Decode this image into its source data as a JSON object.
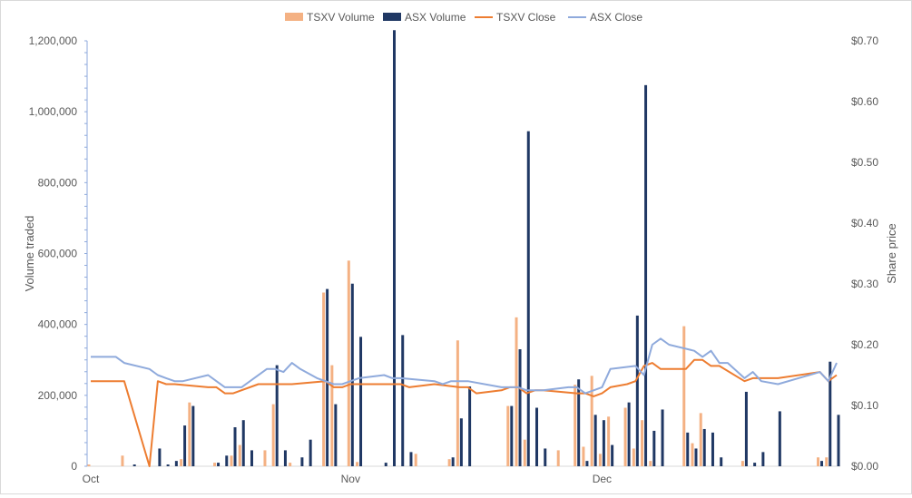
{
  "chart_data": {
    "type": "bar",
    "title": "",
    "ylabel": "Volume traded",
    "y2label": "Share price",
    "ylim": [
      0,
      1200000
    ],
    "y2lim": [
      0,
      0.7
    ],
    "yticks": [
      "0",
      "200,000",
      "400,000",
      "600,000",
      "800,000",
      "1,000,000",
      "1,200,000"
    ],
    "y2ticks": [
      "$0.00",
      "$0.10",
      "$0.20",
      "$0.30",
      "$0.40",
      "$0.50",
      "$0.60",
      "$0.70"
    ],
    "xticks": [
      {
        "label": "Oct",
        "day": 0
      },
      {
        "label": "Nov",
        "day": 31
      },
      {
        "label": "Dec",
        "day": 61
      }
    ],
    "x_range_days": [
      0,
      89
    ],
    "legend_position": "top",
    "colors": {
      "tsxv_volume": "#f4b183",
      "asx_volume": "#203864",
      "tsxv_close": "#ed7d31",
      "asx_close": "#8faadc"
    },
    "legend": [
      "TSXV Volume",
      "ASX Volume",
      "TSXV Close",
      "ASX Close"
    ],
    "series": [
      {
        "name": "TSXV Volume",
        "kind": "bar",
        "axis": "left",
        "points": [
          [
            0,
            5000
          ],
          [
            4,
            30000
          ],
          [
            11,
            20000
          ],
          [
            12,
            180000
          ],
          [
            15,
            10000
          ],
          [
            17,
            30000
          ],
          [
            18,
            60000
          ],
          [
            21,
            45000
          ],
          [
            22,
            175000
          ],
          [
            24,
            10000
          ],
          [
            28,
            490000
          ],
          [
            29,
            285000
          ],
          [
            31,
            580000
          ],
          [
            32,
            12000
          ],
          [
            39,
            35000
          ],
          [
            43,
            20000
          ],
          [
            44,
            355000
          ],
          [
            50,
            170000
          ],
          [
            51,
            420000
          ],
          [
            52,
            75000
          ],
          [
            56,
            45000
          ],
          [
            58,
            230000
          ],
          [
            59,
            55000
          ],
          [
            60,
            255000
          ],
          [
            61,
            35000
          ],
          [
            62,
            140000
          ],
          [
            64,
            165000
          ],
          [
            65,
            50000
          ],
          [
            66,
            130000
          ],
          [
            67,
            15000
          ],
          [
            71,
            395000
          ],
          [
            72,
            65000
          ],
          [
            73,
            150000
          ],
          [
            78,
            15000
          ],
          [
            87,
            25000
          ],
          [
            88,
            25000
          ]
        ]
      },
      {
        "name": "ASX Volume",
        "kind": "bar",
        "axis": "left",
        "points": [
          [
            5,
            5000
          ],
          [
            8,
            50000
          ],
          [
            9,
            5000
          ],
          [
            10,
            15000
          ],
          [
            11,
            115000
          ],
          [
            12,
            170000
          ],
          [
            15,
            10000
          ],
          [
            16,
            30000
          ],
          [
            17,
            110000
          ],
          [
            18,
            130000
          ],
          [
            19,
            45000
          ],
          [
            22,
            285000
          ],
          [
            23,
            45000
          ],
          [
            25,
            25000
          ],
          [
            26,
            75000
          ],
          [
            28,
            500000
          ],
          [
            29,
            175000
          ],
          [
            31,
            515000
          ],
          [
            32,
            365000
          ],
          [
            35,
            10000
          ],
          [
            36,
            1230000
          ],
          [
            37,
            370000
          ],
          [
            38,
            40000
          ],
          [
            43,
            25000
          ],
          [
            44,
            135000
          ],
          [
            45,
            225000
          ],
          [
            50,
            170000
          ],
          [
            51,
            330000
          ],
          [
            52,
            945000
          ],
          [
            53,
            165000
          ],
          [
            54,
            50000
          ],
          [
            58,
            245000
          ],
          [
            59,
            15000
          ],
          [
            60,
            145000
          ],
          [
            61,
            130000
          ],
          [
            62,
            60000
          ],
          [
            64,
            180000
          ],
          [
            65,
            425000
          ],
          [
            66,
            1075000
          ],
          [
            67,
            100000
          ],
          [
            68,
            160000
          ],
          [
            71,
            95000
          ],
          [
            72,
            50000
          ],
          [
            73,
            105000
          ],
          [
            74,
            95000
          ],
          [
            75,
            25000
          ],
          [
            78,
            210000
          ],
          [
            79,
            10000
          ],
          [
            80,
            40000
          ],
          [
            82,
            155000
          ],
          [
            87,
            15000
          ],
          [
            88,
            295000
          ],
          [
            89,
            145000
          ]
        ]
      },
      {
        "name": "TSXV Close",
        "kind": "line",
        "axis": "right",
        "points": [
          [
            0,
            0.14
          ],
          [
            4,
            0.14
          ],
          [
            7,
            0.0
          ],
          [
            8,
            0.14
          ],
          [
            9,
            0.135
          ],
          [
            10,
            0.135
          ],
          [
            14,
            0.13
          ],
          [
            15,
            0.13
          ],
          [
            16,
            0.12
          ],
          [
            17,
            0.12
          ],
          [
            20,
            0.135
          ],
          [
            24,
            0.135
          ],
          [
            28,
            0.14
          ],
          [
            29,
            0.13
          ],
          [
            30,
            0.13
          ],
          [
            31,
            0.135
          ],
          [
            37,
            0.135
          ],
          [
            38,
            0.13
          ],
          [
            41,
            0.135
          ],
          [
            44,
            0.13
          ],
          [
            45,
            0.13
          ],
          [
            46,
            0.12
          ],
          [
            49,
            0.125
          ],
          [
            50,
            0.13
          ],
          [
            51,
            0.13
          ],
          [
            52,
            0.12
          ],
          [
            53,
            0.125
          ],
          [
            54,
            0.125
          ],
          [
            58,
            0.12
          ],
          [
            59,
            0.12
          ],
          [
            60,
            0.115
          ],
          [
            61,
            0.12
          ],
          [
            62,
            0.13
          ],
          [
            64,
            0.135
          ],
          [
            65,
            0.14
          ],
          [
            66,
            0.165
          ],
          [
            67,
            0.17
          ],
          [
            68,
            0.16
          ],
          [
            71,
            0.16
          ],
          [
            72,
            0.175
          ],
          [
            73,
            0.175
          ],
          [
            74,
            0.165
          ],
          [
            75,
            0.165
          ],
          [
            78,
            0.14
          ],
          [
            79,
            0.145
          ],
          [
            80,
            0.145
          ],
          [
            82,
            0.145
          ],
          [
            87,
            0.155
          ],
          [
            88,
            0.14
          ],
          [
            89,
            0.15
          ]
        ]
      },
      {
        "name": "ASX Close",
        "kind": "line",
        "axis": "right",
        "points": [
          [
            0,
            0.18
          ],
          [
            3,
            0.18
          ],
          [
            4,
            0.17
          ],
          [
            7,
            0.16
          ],
          [
            8,
            0.15
          ],
          [
            9,
            0.145
          ],
          [
            10,
            0.14
          ],
          [
            11,
            0.14
          ],
          [
            14,
            0.15
          ],
          [
            15,
            0.14
          ],
          [
            16,
            0.13
          ],
          [
            17,
            0.13
          ],
          [
            18,
            0.13
          ],
          [
            21,
            0.16
          ],
          [
            22,
            0.16
          ],
          [
            23,
            0.155
          ],
          [
            24,
            0.17
          ],
          [
            25,
            0.16
          ],
          [
            27,
            0.145
          ],
          [
            28,
            0.14
          ],
          [
            29,
            0.135
          ],
          [
            30,
            0.135
          ],
          [
            31,
            0.14
          ],
          [
            32,
            0.145
          ],
          [
            35,
            0.15
          ],
          [
            36,
            0.145
          ],
          [
            37,
            0.145
          ],
          [
            41,
            0.14
          ],
          [
            42,
            0.135
          ],
          [
            43,
            0.14
          ],
          [
            44,
            0.14
          ],
          [
            45,
            0.14
          ],
          [
            49,
            0.13
          ],
          [
            50,
            0.13
          ],
          [
            51,
            0.13
          ],
          [
            52,
            0.125
          ],
          [
            53,
            0.125
          ],
          [
            54,
            0.125
          ],
          [
            57,
            0.13
          ],
          [
            58,
            0.13
          ],
          [
            59,
            0.12
          ],
          [
            60,
            0.125
          ],
          [
            61,
            0.13
          ],
          [
            62,
            0.16
          ],
          [
            65,
            0.165
          ],
          [
            66,
            0.15
          ],
          [
            67,
            0.2
          ],
          [
            68,
            0.21
          ],
          [
            69,
            0.2
          ],
          [
            72,
            0.19
          ],
          [
            73,
            0.18
          ],
          [
            74,
            0.19
          ],
          [
            75,
            0.17
          ],
          [
            76,
            0.17
          ],
          [
            78,
            0.145
          ],
          [
            79,
            0.155
          ],
          [
            80,
            0.14
          ],
          [
            82,
            0.135
          ],
          [
            87,
            0.155
          ],
          [
            88,
            0.14
          ],
          [
            89,
            0.17
          ]
        ]
      }
    ]
  }
}
